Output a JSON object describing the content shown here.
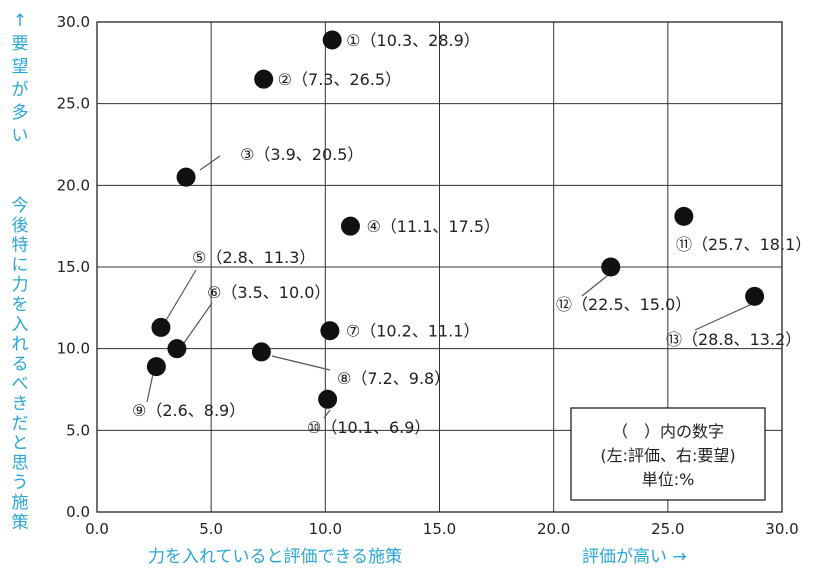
{
  "chart_data": {
    "type": "scatter",
    "xlim": [
      0,
      30
    ],
    "ylim": [
      0,
      30
    ],
    "x_ticks": [
      "0.0",
      "5.0",
      "10.0",
      "15.0",
      "20.0",
      "25.0",
      "30.0"
    ],
    "y_ticks": [
      "0.0",
      "5.0",
      "10.0",
      "15.0",
      "20.0",
      "25.0",
      "30.0"
    ],
    "grid": true,
    "xlabel": "力を入れていると評価できる施策",
    "xlabel_right": "評価が高い →",
    "ylabel_top": "↑要望が多い",
    "ylabel": "今後特に力を入れるべきだと思う施策",
    "points": [
      {
        "id": "①",
        "x": 10.3,
        "y": 28.9,
        "label": "①（10.3、28.9）"
      },
      {
        "id": "②",
        "x": 7.3,
        "y": 26.5,
        "label": "②（7.3、26.5）"
      },
      {
        "id": "③",
        "x": 3.9,
        "y": 20.5,
        "label": "③（3.9、20.5）"
      },
      {
        "id": "④",
        "x": 11.1,
        "y": 17.5,
        "label": "④（11.1、17.5）"
      },
      {
        "id": "⑤",
        "x": 2.8,
        "y": 11.3,
        "label": "⑤（2.8、11.3）"
      },
      {
        "id": "⑥",
        "x": 3.5,
        "y": 10.0,
        "label": "⑥（3.5、10.0）"
      },
      {
        "id": "⑦",
        "x": 10.2,
        "y": 11.1,
        "label": "⑦（10.2、11.1）"
      },
      {
        "id": "⑧",
        "x": 7.2,
        "y": 9.8,
        "label": "⑧（7.2、9.8）"
      },
      {
        "id": "⑨",
        "x": 2.6,
        "y": 8.9,
        "label": "⑨（2.6、8.9）"
      },
      {
        "id": "⑩",
        "x": 10.1,
        "y": 6.9,
        "label": "⑩（10.1、6.9）"
      },
      {
        "id": "⑪",
        "x": 25.7,
        "y": 18.1,
        "label": "⑪（25.7、18.1）"
      },
      {
        "id": "⑫",
        "x": 22.5,
        "y": 15.0,
        "label": "⑫（22.5、15.0）"
      },
      {
        "id": "⑬",
        "x": 28.8,
        "y": 13.2,
        "label": "⑬（28.8、13.2）"
      }
    ],
    "note_lines": [
      "（　）内の数字",
      "(左:評価、右:要望)",
      "単位:%"
    ]
  }
}
